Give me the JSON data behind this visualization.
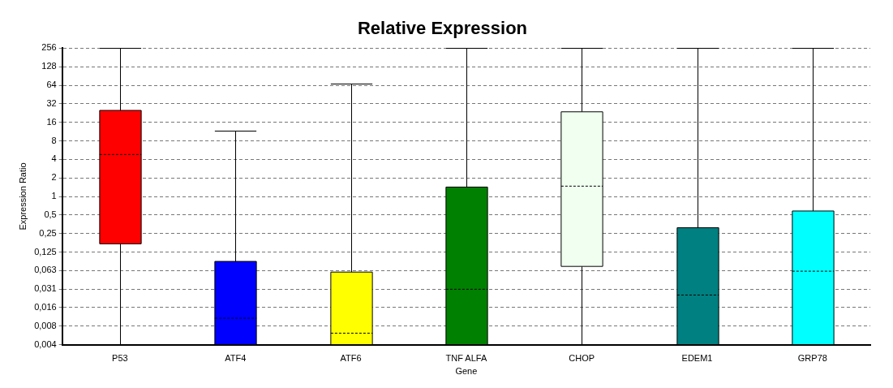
{
  "chart_data": {
    "type": "box",
    "title": "Relative Expression",
    "xlabel": "Gene",
    "ylabel": "Expression Ratio",
    "categories": [
      "P53",
      "ATF4",
      "ATF6",
      "TNF ALFA",
      "CHOP",
      "EDEM1",
      "GRP78"
    ],
    "colors": [
      "#ff0000",
      "#0000ff",
      "#ffff00",
      "#008000",
      "#f0fff0",
      "#008080",
      "#00ffff"
    ],
    "boxes": [
      {
        "low": 0.00390625,
        "q1": 0.17,
        "median": 4.8,
        "q3": 25,
        "high": 256
      },
      {
        "low": 0.00390625,
        "q1": 0.00390625,
        "median": 0.0105,
        "q3": 0.088,
        "high": 11.6
      },
      {
        "low": 0.00390625,
        "q1": 0.00390625,
        "median": 0.006,
        "q3": 0.059,
        "high": 68
      },
      {
        "low": 0.00390625,
        "q1": 0.00390625,
        "median": 0.031,
        "q3": 1.42,
        "high": 256
      },
      {
        "low": 0.00390625,
        "q1": 0.073,
        "median": 1.47,
        "q3": 23.7,
        "high": 256
      },
      {
        "low": 0.00390625,
        "q1": 0.00390625,
        "median": 0.025,
        "q3": 0.31,
        "high": 256
      },
      {
        "low": 0.00390625,
        "q1": 0.00390625,
        "median": 0.061,
        "q3": 0.58,
        "high": 256
      }
    ],
    "log": true,
    "ylim": [
      0.00390625,
      256
    ],
    "yticks": [
      {
        "value": 0.00390625,
        "label": "0,004"
      },
      {
        "value": 0.0078125,
        "label": "0,008"
      },
      {
        "value": 0.015625,
        "label": "0,016"
      },
      {
        "value": 0.03125,
        "label": "0,031"
      },
      {
        "value": 0.0625,
        "label": "0,063"
      },
      {
        "value": 0.125,
        "label": "0,125"
      },
      {
        "value": 0.25,
        "label": "0,25"
      },
      {
        "value": 0.5,
        "label": "0,5"
      },
      1,
      2,
      4,
      8,
      16,
      32,
      64,
      128,
      256
    ],
    "grid": "y",
    "legend": false
  }
}
